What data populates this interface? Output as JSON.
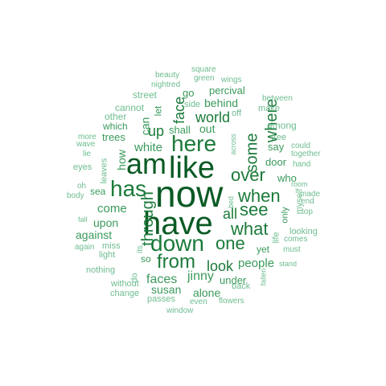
{
  "word_cloud": {
    "colors": {
      "darkest": "#0a5a24",
      "dark": "#1b7a3a",
      "mid": "#3a9a5c",
      "light": "#6ebd90"
    },
    "words": [
      {
        "text": "now",
        "shade": "darkest"
      },
      {
        "text": "have",
        "shade": "darkest"
      },
      {
        "text": "like",
        "shade": "darkest"
      },
      {
        "text": "am",
        "shade": "darkest"
      },
      {
        "text": "here",
        "shade": "dark"
      },
      {
        "text": "down",
        "shade": "dark"
      },
      {
        "text": "has",
        "shade": "dark"
      },
      {
        "text": "from",
        "shade": "dark"
      },
      {
        "text": "one",
        "shade": "dark"
      },
      {
        "text": "when",
        "shade": "dark"
      },
      {
        "text": "through",
        "shade": "dark"
      },
      {
        "text": "see",
        "shade": "dark"
      },
      {
        "text": "what",
        "shade": "dark"
      },
      {
        "text": "over",
        "shade": "dark"
      },
      {
        "text": "where",
        "shade": "dark"
      },
      {
        "text": "some",
        "shade": "dark"
      },
      {
        "text": "world",
        "shade": "dark"
      },
      {
        "text": "face",
        "shade": "dark"
      },
      {
        "text": "up",
        "shade": "dark"
      },
      {
        "text": "all",
        "shade": "dark"
      },
      {
        "text": "look",
        "shade": "dark"
      },
      {
        "text": "faces",
        "shade": "mid"
      },
      {
        "text": "jinny",
        "shade": "mid"
      },
      {
        "text": "white",
        "shade": "mid"
      },
      {
        "text": "come",
        "shade": "mid"
      },
      {
        "text": "people",
        "shade": "mid"
      },
      {
        "text": "behind",
        "shade": "mid"
      },
      {
        "text": "out",
        "shade": "mid"
      },
      {
        "text": "can",
        "shade": "mid"
      },
      {
        "text": "how",
        "shade": "mid"
      },
      {
        "text": "upon",
        "shade": "mid"
      },
      {
        "text": "against",
        "shade": "mid"
      },
      {
        "text": "susan",
        "shade": "mid"
      },
      {
        "text": "alone",
        "shade": "mid"
      },
      {
        "text": "under",
        "shade": "mid"
      },
      {
        "text": "shall",
        "shade": "mid"
      },
      {
        "text": "percival",
        "shade": "mid"
      },
      {
        "text": "door",
        "shade": "mid"
      },
      {
        "text": "say",
        "shade": "mid"
      },
      {
        "text": "trees",
        "shade": "mid"
      },
      {
        "text": "which",
        "shade": "mid"
      },
      {
        "text": "sea",
        "shade": "mid"
      },
      {
        "text": "yet",
        "shade": "mid"
      },
      {
        "text": "so",
        "shade": "mid"
      },
      {
        "text": "who",
        "shade": "mid"
      },
      {
        "text": "only",
        "shade": "mid"
      },
      {
        "text": "go",
        "shade": "mid"
      },
      {
        "text": "let",
        "shade": "mid"
      },
      {
        "text": "back",
        "shade": "light"
      },
      {
        "text": "among",
        "shade": "light"
      },
      {
        "text": "tree",
        "shade": "light"
      },
      {
        "text": "street",
        "shade": "light"
      },
      {
        "text": "other",
        "shade": "light"
      },
      {
        "text": "cannot",
        "shade": "light"
      },
      {
        "text": "side",
        "shade": "light"
      },
      {
        "text": "make",
        "shade": "light"
      },
      {
        "text": "between",
        "shade": "light"
      },
      {
        "text": "off",
        "shade": "light"
      },
      {
        "text": "nightred",
        "shade": "light"
      },
      {
        "text": "green",
        "shade": "light"
      },
      {
        "text": "wings",
        "shade": "light"
      },
      {
        "text": "beauty",
        "shade": "light"
      },
      {
        "text": "square",
        "shade": "light"
      },
      {
        "text": "more",
        "shade": "light"
      },
      {
        "text": "wave",
        "shade": "light"
      },
      {
        "text": "lie",
        "shade": "light"
      },
      {
        "text": "eyes",
        "shade": "light"
      },
      {
        "text": "leaves",
        "shade": "light"
      },
      {
        "text": "across",
        "shade": "light"
      },
      {
        "text": "could",
        "shade": "light"
      },
      {
        "text": "together",
        "shade": "light"
      },
      {
        "text": "hand",
        "shade": "light"
      },
      {
        "text": "room",
        "shade": "light"
      },
      {
        "text": "made",
        "shade": "light"
      },
      {
        "text": "end",
        "shade": "light"
      },
      {
        "text": "top",
        "shade": "light"
      },
      {
        "text": "myself",
        "shade": "light"
      },
      {
        "text": "bed",
        "shade": "light"
      },
      {
        "text": "oh",
        "shade": "light"
      },
      {
        "text": "body",
        "shade": "light"
      },
      {
        "text": "fall",
        "shade": "light"
      },
      {
        "text": "again",
        "shade": "light"
      },
      {
        "text": "miss",
        "shade": "light"
      },
      {
        "text": "light",
        "shade": "light"
      },
      {
        "text": "its",
        "shade": "light"
      },
      {
        "text": "life",
        "shade": "light"
      },
      {
        "text": "looking",
        "shade": "light"
      },
      {
        "text": "comes",
        "shade": "light"
      },
      {
        "text": "must",
        "shade": "light"
      },
      {
        "text": "stand",
        "shade": "light"
      },
      {
        "text": "nothing",
        "shade": "light"
      },
      {
        "text": "do",
        "shade": "light"
      },
      {
        "text": "without",
        "shade": "light"
      },
      {
        "text": "change",
        "shade": "light"
      },
      {
        "text": "passes",
        "shade": "light"
      },
      {
        "text": "even",
        "shade": "light"
      },
      {
        "text": "flowers",
        "shade": "light"
      },
      {
        "text": "fallen",
        "shade": "light"
      },
      {
        "text": "window",
        "shade": "light"
      }
    ]
  }
}
